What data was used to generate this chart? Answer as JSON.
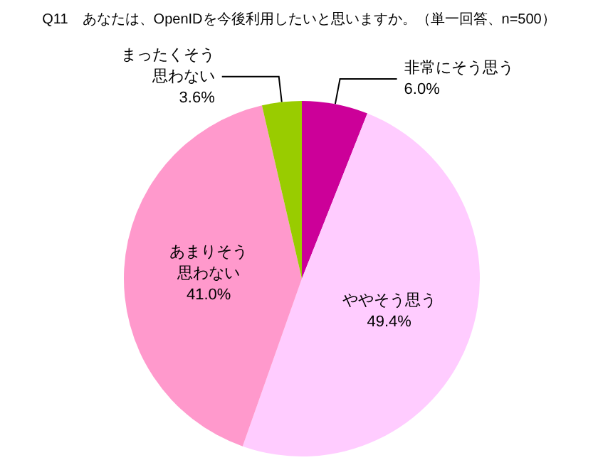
{
  "chart_data": {
    "type": "pie",
    "title": "Q11　あなたは、OpenIDを今後利用したいと思いますか。（単一回答、n=500）",
    "categories": [
      "非常にそう思う",
      "ややそう思う",
      "あまりそう思わない",
      "まったくそう思わない"
    ],
    "values": [
      6.0,
      49.4,
      41.0,
      3.6
    ],
    "value_labels": [
      "6.0%",
      "49.4%",
      "41.0%",
      "3.6%"
    ],
    "colors": [
      "#cc0099",
      "#ffccff",
      "#ff99cc",
      "#99cc00"
    ],
    "legend": false
  }
}
